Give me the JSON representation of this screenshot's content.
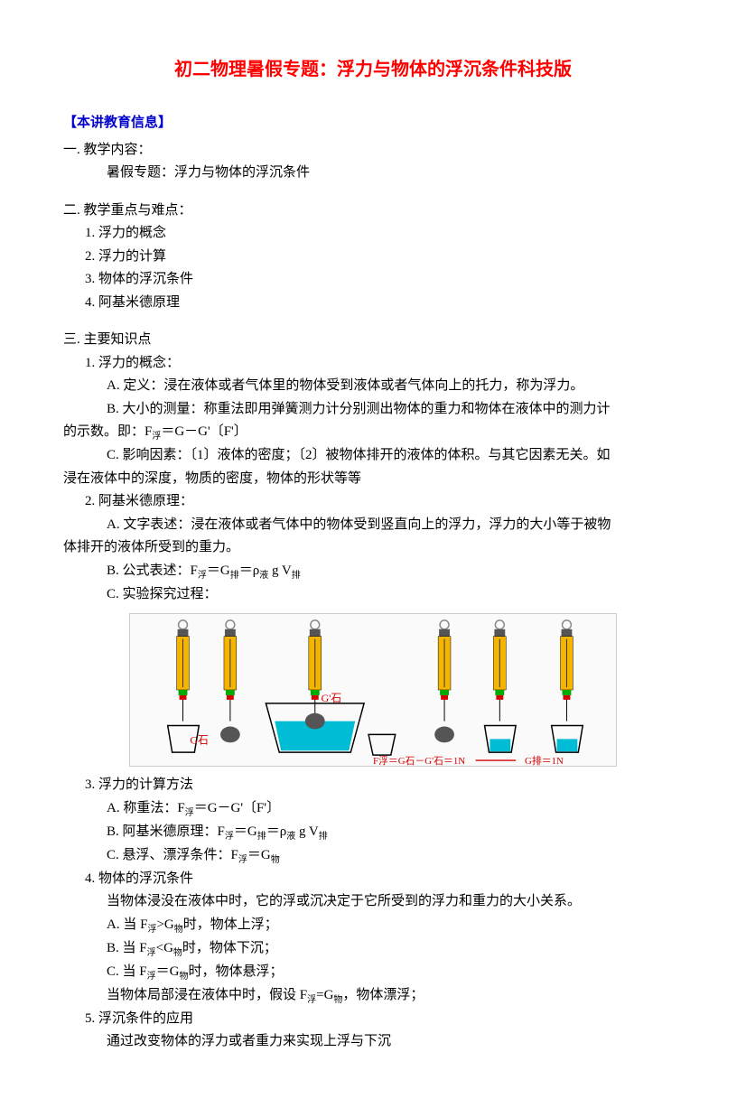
{
  "colors": {
    "title": "#ff0000",
    "header": "#0000cc",
    "body": "#000000",
    "diagram_yellow": "#f4b400",
    "diagram_red": "#d40000",
    "diagram_blue": "#00bcd4",
    "diagram_gray": "#555555",
    "diagram_outline": "#000000"
  },
  "title": "初二物理暑假专题：浮力与物体的浮沉条件科技版",
  "header1": "【本讲教育信息】",
  "sec1_title": "一. 教学内容：",
  "sec1_content": "暑假专题：浮力与物体的浮沉条件",
  "sec2_title": "二. 教学重点与难点：",
  "sec2_items": [
    "1. 浮力的概念",
    "2. 浮力的计算",
    "3. 物体的浮沉条件",
    "4. 阿基米德原理"
  ],
  "sec3_title": "三. 主要知识点",
  "p1_title": "1. 浮力的概念：",
  "p1_a": "A. 定义：浸在液体或者气体里的物体受到液体或者气体向上的托力，称为浮力。",
  "p1_b": "B. 大小的测量：称重法即用弹簧测力计分别测出物体的重力和物体在液体中的测力计",
  "p1_b2_pre": "的示数。即：F",
  "p1_b2_post": "＝G－G'〔F'〕",
  "p1_c": "C. 影响因素：〔1〕液体的密度；〔2〕被物体排开的液体的体积。与其它因素无关。如",
  "p1_c2": "浸在液体中的深度，物质的密度，物体的形状等等",
  "p2_title": "2. 阿基米德原理：",
  "p2_a": "A. 文字表述：浸在液体或者气体中的物体受到竖直向上的浮力，浮力的大小等于被物",
  "p2_a2": "体排开的液体所受到的重力。",
  "p2_b_pre": "B. 公式表述：F",
  "p2_b_mid1": "＝G",
  "p2_b_mid2": "＝ρ",
  "p2_b_mid3": " g V",
  "p2_c": "C. 实验探究过程：",
  "diagram": {
    "label_g_stone": "G石",
    "label_g_prime": "G'石",
    "formula_left": "F浮＝G石－G'石＝1N",
    "formula_right": "G排＝1N",
    "scale_colors": {
      "body": "#f4b400",
      "top": "#555555",
      "ring": "#999999",
      "weight": "#555555"
    },
    "water_color": "#00bcd4",
    "line_color": "#d40000"
  },
  "p3_title": "3. 浮力的计算方法",
  "p3_a_pre": "A. 称重法：F",
  "p3_a_post": "＝G－G'〔F'〕",
  "p3_b_pre": "B. 阿基米德原理：F",
  "p3_b_mid1": "＝G",
  "p3_b_mid2": "＝ρ",
  "p3_b_mid3": " g V",
  "p3_c_pre": "C. 悬浮、漂浮条件：F",
  "p3_c_mid": "＝G",
  "p4_title": "4. 物体的浮沉条件",
  "p4_intro": "当物体浸没在液体中时，它的浮或沉决定于它所受到的浮力和重力的大小关系。",
  "p4_a_pre": "A. 当 F",
  "p4_a_mid": ">G",
  "p4_a_post": "时，物体上浮；",
  "p4_b_pre": "B. 当 F",
  "p4_b_mid": "<G",
  "p4_b_post": "时，物体下沉；",
  "p4_c_pre": "C. 当 F",
  "p4_c_mid": "＝G",
  "p4_c_post": "时，物体悬浮；",
  "p4_d_pre": "当物体局部浸在液体中时，假设 F",
  "p4_d_mid": "=G",
  "p4_d_post": "，物体漂浮；",
  "p5_title": "5. 浮沉条件的应用",
  "p5_content": "通过改变物体的浮力或者重力来实现上浮与下沉",
  "subs": {
    "fu": "浮",
    "pai": "排",
    "ye": "液",
    "wu": "物"
  }
}
